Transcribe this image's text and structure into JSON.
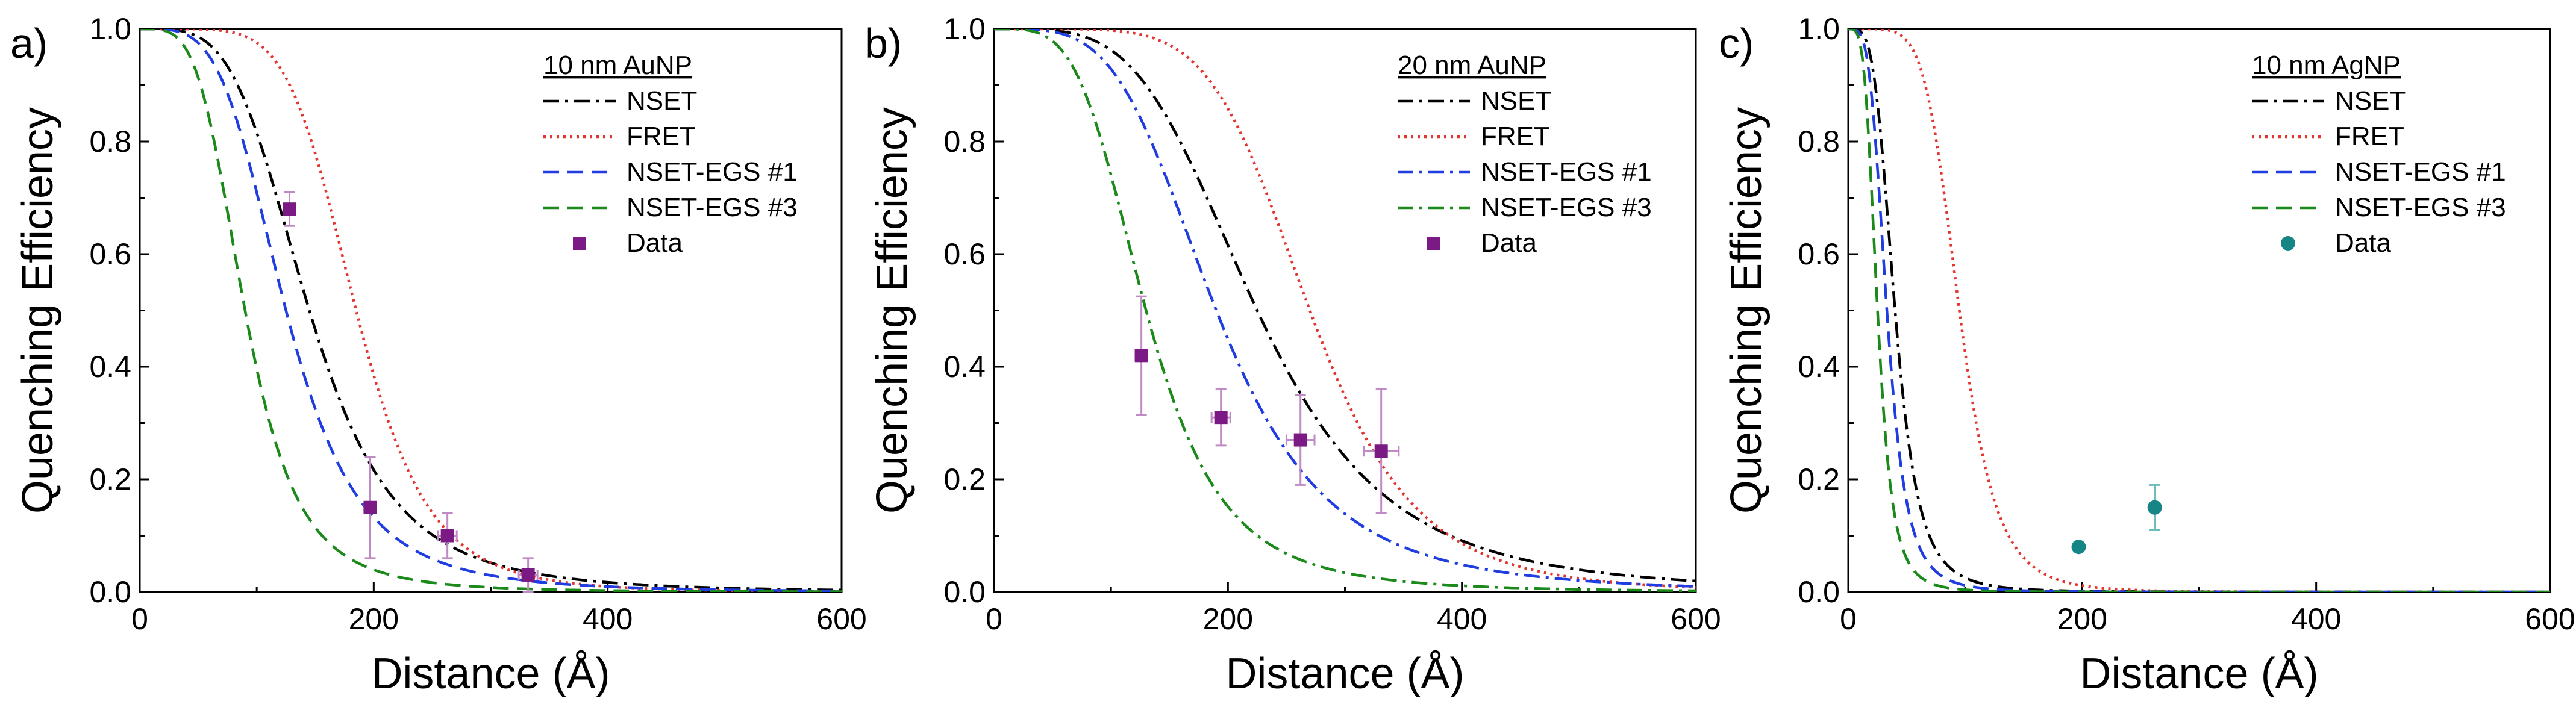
{
  "chart_data": [
    {
      "panel": "a)",
      "type": "line",
      "ylabel": "Quenching Efficiency",
      "xlabel": "Distance (Å)",
      "xlim": [
        0,
        600
      ],
      "ylim": [
        0,
        1.0
      ],
      "xticks": [
        "0",
        "200",
        "400",
        "600"
      ],
      "yticks": [
        "0.0",
        "0.2",
        "0.4",
        "0.6",
        "0.8",
        "1.0"
      ],
      "legend_title": "10 nm AuNP",
      "legend_position": "top-right",
      "series": [
        {
          "name": "NSET",
          "kind": "line",
          "style": "dashdot",
          "color": "#000000",
          "d0": 145,
          "n": 4
        },
        {
          "name": "FRET",
          "kind": "line",
          "style": "dot",
          "color": "#e3342f",
          "d0": 185,
          "n": 6
        },
        {
          "name": "NSET-EGS #1",
          "kind": "line",
          "style": "dash",
          "color": "#1f3de0",
          "d0": 125,
          "n": 4
        },
        {
          "name": "NSET-EGS #3",
          "kind": "line",
          "style": "dash",
          "color": "#1b8a1b",
          "d0": 90,
          "n": 4
        },
        {
          "name": "Data",
          "kind": "points",
          "color": "#7b1a84",
          "points": [
            {
              "x": 128,
              "y": 0.68,
              "yerr": 0.03,
              "xerr": 5
            },
            {
              "x": 197,
              "y": 0.15,
              "yerr": 0.09,
              "xerr": 5
            },
            {
              "x": 263,
              "y": 0.1,
              "yerr": 0.04,
              "xerr": 8
            },
            {
              "x": 332,
              "y": 0.03,
              "yerr": 0.03,
              "xerr": 8
            }
          ]
        }
      ]
    },
    {
      "panel": "b)",
      "type": "line",
      "ylabel": "Quenching Efficiency",
      "xlabel": "Distance (Å)",
      "xlim": [
        0,
        600
      ],
      "ylim": [
        0,
        1.0
      ],
      "xticks": [
        "0",
        "200",
        "400",
        "600"
      ],
      "yticks": [
        "0.0",
        "0.2",
        "0.4",
        "0.6",
        "0.8",
        "1.0"
      ],
      "legend_title": "20 nm AuNP",
      "legend_position": "top-right",
      "series": [
        {
          "name": "NSET",
          "kind": "line",
          "style": "dashdot",
          "color": "#000000",
          "d0": 225,
          "n": 4
        },
        {
          "name": "FRET",
          "kind": "line",
          "style": "dot",
          "color": "#e3342f",
          "d0": 270,
          "n": 6
        },
        {
          "name": "NSET-EGS #1",
          "kind": "line",
          "style": "dashdot",
          "color": "#1f3de0",
          "d0": 190,
          "n": 4
        },
        {
          "name": "NSET-EGS #3",
          "kind": "line",
          "style": "dashdot",
          "color": "#1b8a1b",
          "d0": 130,
          "n": 4
        },
        {
          "name": "Data",
          "kind": "points",
          "color": "#7b1a84",
          "points": [
            {
              "x": 126,
              "y": 0.42,
              "yerr": 0.105,
              "xerr": 5
            },
            {
              "x": 194,
              "y": 0.31,
              "yerr": 0.05,
              "xerr": 8
            },
            {
              "x": 262,
              "y": 0.27,
              "yerr": 0.08,
              "xerr": 12
            },
            {
              "x": 331,
              "y": 0.25,
              "yerr": 0.11,
              "xerr": 15
            }
          ]
        }
      ]
    },
    {
      "panel": "c)",
      "type": "line",
      "ylabel": "Quenching Efficiency",
      "xlabel": "Distance (Å)",
      "xlim": [
        0,
        600
      ],
      "ylim": [
        0,
        1.0
      ],
      "xticks": [
        "0",
        "200",
        "400",
        "600"
      ],
      "yticks": [
        "0.0",
        "0.2",
        "0.4",
        "0.6",
        "0.8",
        "1.0"
      ],
      "legend_title": "10 nm AgNP",
      "legend_position": "top-right",
      "series": [
        {
          "name": "NSET",
          "kind": "line",
          "style": "dashdot",
          "color": "#000000",
          "d0": 40,
          "n": 4
        },
        {
          "name": "FRET",
          "kind": "line",
          "style": "dot",
          "color": "#e3342f",
          "d0": 95,
          "n": 6
        },
        {
          "name": "NSET-EGS #1",
          "kind": "line",
          "style": "dash",
          "color": "#1f3de0",
          "d0": 33,
          "n": 4
        },
        {
          "name": "NSET-EGS #3",
          "kind": "line",
          "style": "dash",
          "color": "#1b8a1b",
          "d0": 25,
          "n": 4
        },
        {
          "name": "Data",
          "kind": "points",
          "color": "#158585",
          "points": [
            {
              "x": 197,
              "y": 0.08,
              "yerr": 0.0,
              "xerr": 0
            },
            {
              "x": 262,
              "y": 0.15,
              "yerr": 0.04,
              "xerr": 0
            }
          ]
        }
      ]
    }
  ]
}
